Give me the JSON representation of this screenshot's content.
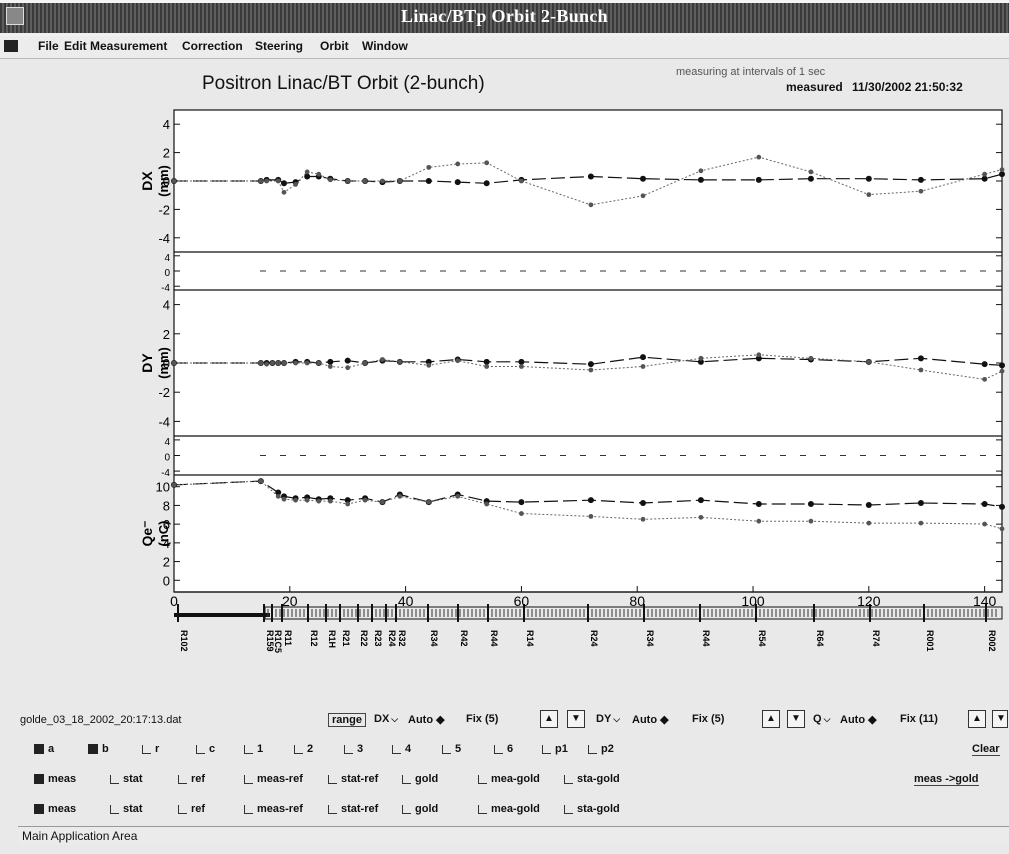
{
  "window": {
    "title": "Linac/BTp Orbit 2-Bunch"
  },
  "menu": {
    "items": [
      {
        "label": "File"
      },
      {
        "label": "Edit"
      },
      {
        "label": "Measurement"
      },
      {
        "label": "Correction"
      },
      {
        "label": "Steering"
      },
      {
        "label": "Orbit"
      },
      {
        "label": "Window"
      }
    ]
  },
  "header": {
    "plot_title": "Positron Linac/BT Orbit (2-bunch)",
    "status": "measuring at intervals of 1 sec",
    "measured_label": "measured",
    "measured_time": "11/30/2002 21:50:32"
  },
  "panels": {
    "dx": {
      "ylabel": "DX",
      "unit": "(mm)",
      "ticks": [
        "4",
        "2",
        "0",
        "-2",
        "-4"
      ]
    },
    "dx_small": {
      "ticks": [
        "4",
        "0",
        "-4"
      ]
    },
    "dy": {
      "ylabel": "DY",
      "unit": "(mm)",
      "ticks": [
        "4",
        "2",
        "0",
        "-2",
        "-4"
      ]
    },
    "dy_small": {
      "ticks": [
        "4",
        "0",
        "-4"
      ]
    },
    "q": {
      "ylabel": "Qe⁻",
      "unit": "(nC)",
      "ticks": [
        "10",
        "8",
        "6",
        "4",
        "2",
        "0"
      ]
    }
  },
  "chart_data": [
    {
      "type": "line",
      "ylabel": "DX (mm)",
      "ylim": [
        -5,
        5
      ],
      "series": [
        {
          "x": [
            0,
            15,
            16,
            18,
            19,
            21,
            23,
            25,
            27,
            30,
            33,
            36,
            39,
            44,
            49,
            54,
            60,
            72,
            81,
            91,
            101,
            110,
            120,
            129,
            140,
            143
          ],
          "values": [
            0,
            0,
            0.1,
            0.1,
            -0.2,
            -0.1,
            0.4,
            0.4,
            0.2,
            0,
            0,
            -0.1,
            0,
            0,
            -0.1,
            -0.2,
            0.1,
            0.4,
            0.2,
            0.1,
            0.1,
            0.2,
            0.2,
            0.1,
            0.2,
            0.6
          ]
        },
        {
          "x": [
            0,
            15,
            16,
            18,
            19,
            21,
            23,
            25,
            27,
            30,
            33,
            36,
            39,
            44,
            49,
            54,
            60,
            72,
            81,
            91,
            101,
            110,
            120,
            129,
            140,
            143
          ],
          "values": [
            0,
            0,
            0,
            0,
            -1,
            -0.3,
            0.8,
            0.6,
            0.1,
            0,
            0,
            0,
            0,
            1.2,
            1.5,
            1.6,
            0,
            -2.1,
            -1.3,
            0.9,
            2.1,
            0.8,
            -1.2,
            -0.9,
            0.6,
            1.0
          ]
        }
      ],
      "xlim": [
        0,
        143
      ]
    },
    {
      "type": "line",
      "ylabel": "DY (mm)",
      "ylim": [
        -5,
        5
      ],
      "series": [
        {
          "x": [
            0,
            15,
            16,
            17,
            18,
            19,
            21,
            23,
            25,
            27,
            30,
            33,
            36,
            39,
            44,
            49,
            54,
            60,
            72,
            81,
            91,
            101,
            110,
            120,
            129,
            140,
            143
          ],
          "values": [
            0,
            0,
            0,
            0,
            0,
            0,
            0.1,
            0.1,
            0,
            0.1,
            0.2,
            0,
            0.2,
            0.1,
            0.1,
            0.3,
            0.1,
            0.1,
            -0.1,
            0.5,
            0.1,
            0.4,
            0.3,
            0.1,
            0.4,
            -0.1,
            -0.2
          ]
        },
        {
          "x": [
            0,
            15,
            16,
            17,
            18,
            19,
            21,
            23,
            25,
            27,
            30,
            33,
            36,
            39,
            44,
            49,
            54,
            60,
            72,
            81,
            91,
            101,
            110,
            120,
            129,
            140,
            143
          ],
          "values": [
            0,
            0,
            -0.1,
            0,
            0,
            0,
            0,
            0,
            0,
            -0.3,
            -0.4,
            0,
            0.3,
            0.1,
            -0.2,
            0.2,
            -0.3,
            -0.3,
            -0.6,
            -0.3,
            0.4,
            0.7,
            0.4,
            0.1,
            -0.6,
            -1.4,
            -0.7
          ]
        }
      ],
      "xlim": [
        0,
        143
      ]
    },
    {
      "type": "line",
      "ylabel": "Qe⁻ (nC)",
      "ylim": [
        0,
        11
      ],
      "xticks": [
        "0",
        "20",
        "40",
        "60",
        "80",
        "100",
        "120",
        "140"
      ],
      "series": [
        {
          "x": [
            0,
            15,
            18,
            19,
            21,
            23,
            25,
            27,
            30,
            33,
            36,
            39,
            44,
            49,
            54,
            60,
            72,
            81,
            91,
            101,
            110,
            120,
            129,
            140,
            143
          ],
          "values": [
            10.8,
            11.2,
            10,
            9.6,
            9.4,
            9.5,
            9.3,
            9.4,
            9.2,
            9.4,
            9,
            9.8,
            9,
            9.8,
            9.1,
            9,
            9.2,
            8.9,
            9.2,
            8.8,
            8.8,
            8.7,
            8.9,
            8.8,
            8.5
          ]
        },
        {
          "x": [
            0,
            15,
            18,
            19,
            21,
            23,
            25,
            27,
            30,
            33,
            36,
            39,
            44,
            49,
            54,
            60,
            72,
            81,
            91,
            101,
            110,
            120,
            129,
            140,
            143
          ],
          "values": [
            10.8,
            11.2,
            9.6,
            9.3,
            9.2,
            9.2,
            9.1,
            9.1,
            8.8,
            9.2,
            9,
            9.6,
            9,
            9.6,
            8.8,
            7.8,
            7.5,
            7.2,
            7.4,
            7.0,
            7.0,
            6.8,
            6.8,
            6.7,
            6.2
          ]
        }
      ],
      "xlim": [
        0,
        143
      ]
    }
  ],
  "bpm_labels": [
    "R102",
    "R159",
    "R1C5",
    "R11",
    "R12",
    "R1H",
    "R21",
    "R22",
    "R23",
    "R24",
    "R32",
    "R34",
    "R42",
    "R44",
    "R14",
    "R24",
    "R34",
    "R44",
    "R54",
    "R64",
    "R74",
    "R001",
    "R002"
  ],
  "bottom": {
    "filename": "golde_03_18_2002_20:17:13.dat",
    "range_label": "range",
    "dx_select": "DX",
    "dy_select": "DY",
    "q_select": "Q",
    "auto_label": "Auto",
    "fix_dx": "Fix (5)",
    "fix_dy": "Fix (5)",
    "fix_q": "Fix (11)",
    "bunch_checks": [
      "a",
      "b",
      "r",
      "c",
      "1",
      "2",
      "3",
      "4",
      "5",
      "6",
      "p1",
      "p2"
    ],
    "clear_button": "Clear",
    "row1": [
      "meas",
      "stat",
      "ref",
      "meas-ref",
      "stat-ref",
      "gold",
      "mea-gold",
      "sta-gold"
    ],
    "row2": [
      "meas",
      "stat",
      "ref",
      "meas-ref",
      "stat-ref",
      "gold",
      "mea-gold",
      "sta-gold"
    ],
    "gold_button": "meas ->gold"
  },
  "statusbar": {
    "text": "Main Application Area"
  }
}
